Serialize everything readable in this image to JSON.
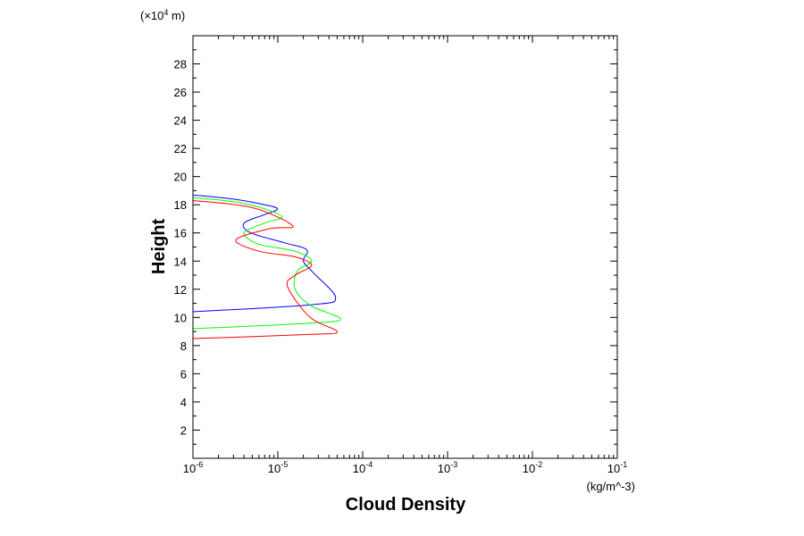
{
  "chart_data": {
    "type": "line",
    "xlabel": "Cloud Density",
    "ylabel": "Height",
    "x_unit": "(kg/m^-3)",
    "y_unit_prefix": "(×10",
    "y_unit_exp": "4",
    "y_unit_suffix": " m)",
    "x_scale": "log",
    "xlim": [
      1e-06,
      0.1
    ],
    "ylim": [
      0,
      30
    ],
    "x_ticks": [
      {
        "base": "10",
        "exp": "-6",
        "value": 1e-06
      },
      {
        "base": "10",
        "exp": "-5",
        "value": 1e-05
      },
      {
        "base": "10",
        "exp": "-4",
        "value": 0.0001
      },
      {
        "base": "10",
        "exp": "-3",
        "value": 0.001
      },
      {
        "base": "10",
        "exp": "-2",
        "value": 0.01
      },
      {
        "base": "10",
        "exp": "-1",
        "value": 0.1
      }
    ],
    "y_ticks": [
      "2",
      "4",
      "6",
      "8",
      "10",
      "12",
      "14",
      "16",
      "18",
      "20",
      "22",
      "24",
      "26",
      "28"
    ],
    "grid": false,
    "legend": "none",
    "series": [
      {
        "color": "#0000ff",
        "x": [
          1e-06,
          3e-06,
          7e-06,
          9.9e-06,
          7e-06,
          4e-06,
          4.8e-06,
          1.2e-05,
          2.2e-05,
          2e-05,
          2.6e-05,
          4.8e-05,
          2.5e-05,
          1e-06
        ],
        "y": [
          18.7,
          18.4,
          18.0,
          17.7,
          17.3,
          16.7,
          16.0,
          15.3,
          14.8,
          14.0,
          13.2,
          11.4,
          10.9,
          10.4
        ]
      },
      {
        "color": "#00ff00",
        "x": [
          1e-06,
          4e-06,
          1.1e-05,
          7e-06,
          4e-06,
          6e-06,
          1.6e-05,
          2.5e-05,
          1.7e-05,
          1.6e-05,
          2.5e-05,
          5.5e-05,
          2.5e-05,
          1e-06
        ],
        "y": [
          18.5,
          18.1,
          17.2,
          16.7,
          16.0,
          15.2,
          14.7,
          14.0,
          13.3,
          12.0,
          10.8,
          9.9,
          9.6,
          9.2
        ]
      },
      {
        "color": "#ff0000",
        "x": [
          1e-06,
          5e-06,
          1.5e-05,
          8e-06,
          3.2e-06,
          6e-06,
          1.6e-05,
          2.5e-05,
          1.6e-05,
          1.3e-05,
          2.4e-05,
          5e-05,
          2.5e-05,
          1e-06
        ],
        "y": [
          18.3,
          17.8,
          16.5,
          16.3,
          15.5,
          14.7,
          14.3,
          13.7,
          13.0,
          12.2,
          10.0,
          9.0,
          8.8,
          8.5
        ]
      }
    ]
  }
}
